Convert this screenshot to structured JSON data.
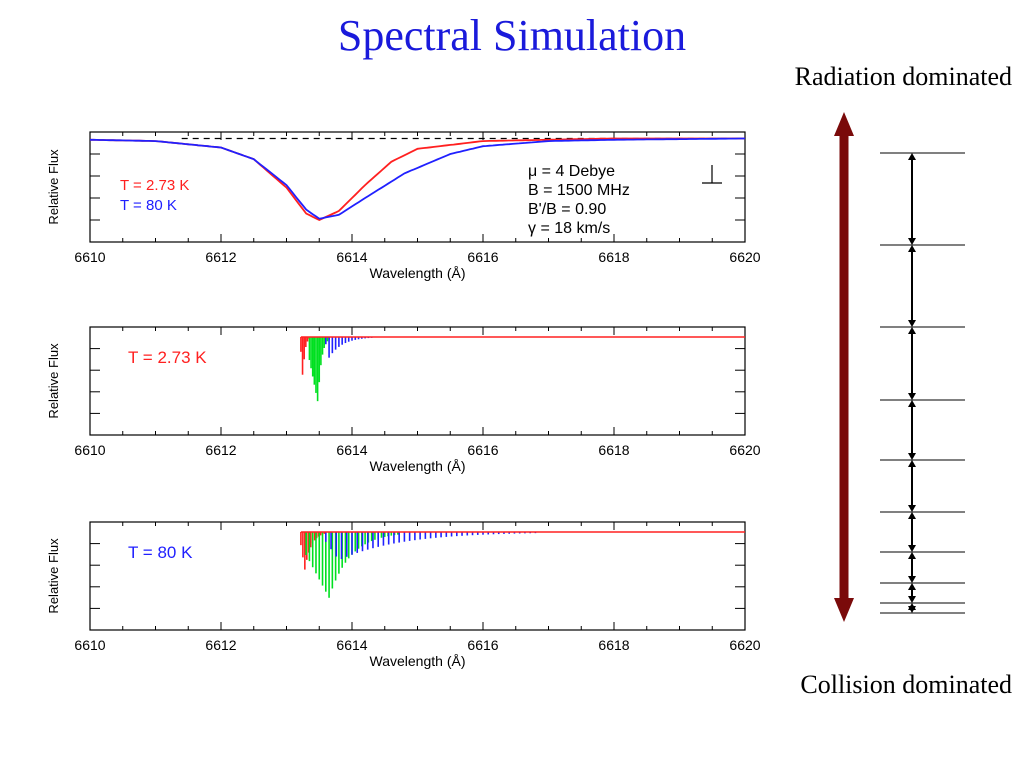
{
  "title": "Spectral Simulation",
  "right": {
    "top_label": "Radiation dominated",
    "bottom_label": "Collision dominated",
    "arrow_color": "#7a0a0a",
    "level_count": 10
  },
  "colors": {
    "red": "#ff2020",
    "blue": "#2020ff",
    "green": "#00e020",
    "text_blue": "#1a1adb"
  },
  "chart_data": [
    {
      "type": "line",
      "ylabel": "Relative Flux",
      "xlabel": "Wavelength (Å)",
      "xlim": [
        6610,
        6620
      ],
      "xticks": [
        "6610",
        "6612",
        "6614",
        "6616",
        "6618",
        "6620"
      ],
      "legend": [
        {
          "text": "T = 2.73 K",
          "color": "#ff2020"
        },
        {
          "text": "T = 80 K",
          "color": "#2020ff"
        }
      ],
      "annotation": [
        "μ = 4 Debye",
        "B = 1500 MHz",
        "B'/B = 0.90",
        "γ = 18 km/s"
      ],
      "continuum_dashed": true,
      "series": [
        {
          "color": "#ff2020",
          "x": [
            6610,
            6611,
            6612,
            6612.5,
            6613,
            6613.3,
            6613.5,
            6613.8,
            6614.2,
            6614.6,
            6615,
            6616,
            6617,
            6618,
            6620
          ],
          "y": [
            0.99,
            0.98,
            0.93,
            0.84,
            0.62,
            0.42,
            0.37,
            0.44,
            0.64,
            0.82,
            0.92,
            0.98,
            0.99,
            1.0,
            1.0
          ]
        },
        {
          "color": "#2020ff",
          "x": [
            6610,
            6611,
            6612,
            6612.5,
            6613,
            6613.3,
            6613.5,
            6613.8,
            6614.2,
            6614.8,
            6615.5,
            6616,
            6617,
            6618,
            6620
          ],
          "y": [
            0.99,
            0.98,
            0.93,
            0.84,
            0.64,
            0.45,
            0.38,
            0.41,
            0.54,
            0.73,
            0.88,
            0.94,
            0.98,
            0.99,
            1.0
          ]
        }
      ]
    },
    {
      "type": "line",
      "ylabel": "Relative Flux",
      "xlabel": "Wavelength (Å)",
      "xlim": [
        6610,
        6620
      ],
      "xticks": [
        "6610",
        "6612",
        "6614",
        "6616",
        "6618",
        "6620"
      ],
      "label": {
        "text": "T = 2.73 K",
        "color": "#ff2020"
      },
      "continuum_color": "#ff2020",
      "branches": [
        {
          "color": "#ff2020",
          "start": 6613.22,
          "peak": 6613.25,
          "end": 6613.35,
          "spacing": 0.025,
          "depth": 0.45
        },
        {
          "color": "#00e020",
          "start": 6613.35,
          "peak": 6613.48,
          "end": 6613.65,
          "spacing": 0.025,
          "depth": 0.7
        },
        {
          "color": "#2020ff",
          "start": 6613.6,
          "peak": 6613.65,
          "end": 6614.3,
          "spacing": 0.05,
          "depth": 0.22
        }
      ]
    },
    {
      "type": "line",
      "ylabel": "Relative Flux",
      "xlabel": "Wavelength (Å)",
      "xlim": [
        6610,
        6620
      ],
      "xticks": [
        "6610",
        "6612",
        "6614",
        "6616",
        "6618",
        "6620"
      ],
      "label": {
        "text": "T = 80 K",
        "color": "#2020ff"
      },
      "continuum_color": "#ff2020",
      "branches": [
        {
          "color": "#ff2020",
          "start": 6613.22,
          "peak": 6613.28,
          "end": 6613.6,
          "spacing": 0.03,
          "depth": 0.4
        },
        {
          "color": "#00e020",
          "start": 6613.3,
          "peak": 6613.65,
          "end": 6614.7,
          "spacing": 0.05,
          "depth": 0.7
        },
        {
          "color": "#2020ff",
          "start": 6613.6,
          "peak": 6613.8,
          "end": 6616.8,
          "spacing": 0.08,
          "depth": 0.3
        }
      ]
    }
  ]
}
